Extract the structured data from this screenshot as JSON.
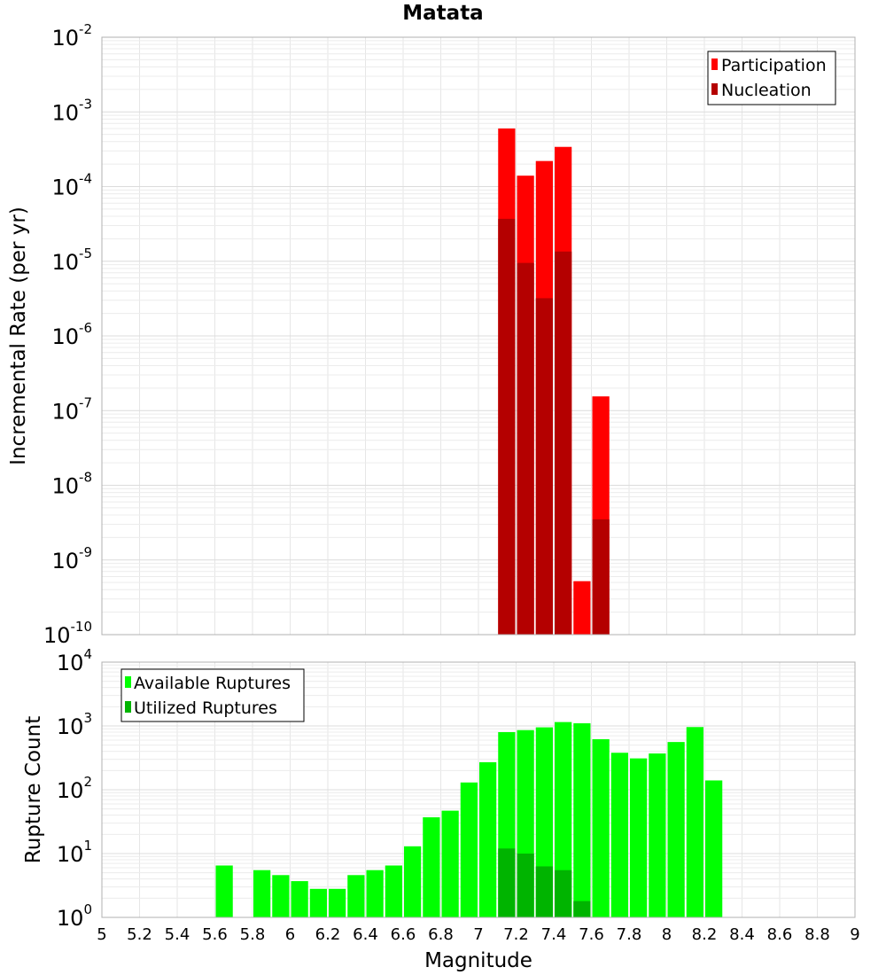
{
  "chart_data": [
    {
      "type": "bar",
      "title": "Matata",
      "xlabel": "",
      "ylabel": "Incremental Rate (per yr)",
      "yscale": "log",
      "ylim_exp": [
        -10,
        -2
      ],
      "xlim": [
        5,
        9
      ],
      "bar_width": 0.1,
      "legend_position": "top-right",
      "series": [
        {
          "name": "Participation",
          "color": "#ff0000",
          "x": [
            7.15,
            7.25,
            7.35,
            7.45,
            7.55,
            7.65
          ],
          "values": [
            0.0006,
            0.00014,
            0.00022,
            0.00034,
            5.2e-10,
            1.55e-07
          ]
        },
        {
          "name": "Nucleation",
          "color": "#b40000",
          "x": [
            7.15,
            7.25,
            7.35,
            7.45,
            7.65
          ],
          "values": [
            3.7e-05,
            9.5e-06,
            3.2e-06,
            1.35e-05,
            3.5e-09
          ]
        }
      ]
    },
    {
      "type": "bar",
      "title": "",
      "xlabel": "Magnitude",
      "ylabel": "Rupture Count",
      "yscale": "log",
      "ylim_exp": [
        0,
        4
      ],
      "xlim": [
        5,
        9
      ],
      "xticks": [
        "5",
        "5.2",
        "5.4",
        "5.6",
        "5.8",
        "6",
        "6.2",
        "6.4",
        "6.6",
        "6.8",
        "7",
        "7.2",
        "7.4",
        "7.6",
        "7.8",
        "8",
        "8.2",
        "8.4",
        "8.6",
        "8.8",
        "9"
      ],
      "bar_width": 0.1,
      "legend_position": "top-left",
      "series": [
        {
          "name": "Available Ruptures",
          "color": "#00ff00",
          "x": [
            5.65,
            5.85,
            5.95,
            6.05,
            6.15,
            6.25,
            6.35,
            6.45,
            6.55,
            6.65,
            6.75,
            6.85,
            6.95,
            7.05,
            7.15,
            7.25,
            7.35,
            7.45,
            7.55,
            7.65,
            7.75,
            7.85,
            7.95,
            8.05,
            8.15,
            8.25
          ],
          "values": [
            6.5,
            5.5,
            4.6,
            3.7,
            2.8,
            2.8,
            4.6,
            5.5,
            6.5,
            13,
            37,
            47,
            130,
            270,
            800,
            860,
            950,
            1150,
            1100,
            620,
            380,
            310,
            370,
            560,
            960,
            140
          ]
        },
        {
          "name": "Utilized Ruptures",
          "color": "#00b400",
          "x": [
            7.15,
            7.25,
            7.35,
            7.45,
            7.55,
            7.65
          ],
          "values": [
            12,
            10,
            6.3,
            5.5,
            1.8,
            1
          ]
        }
      ]
    }
  ]
}
